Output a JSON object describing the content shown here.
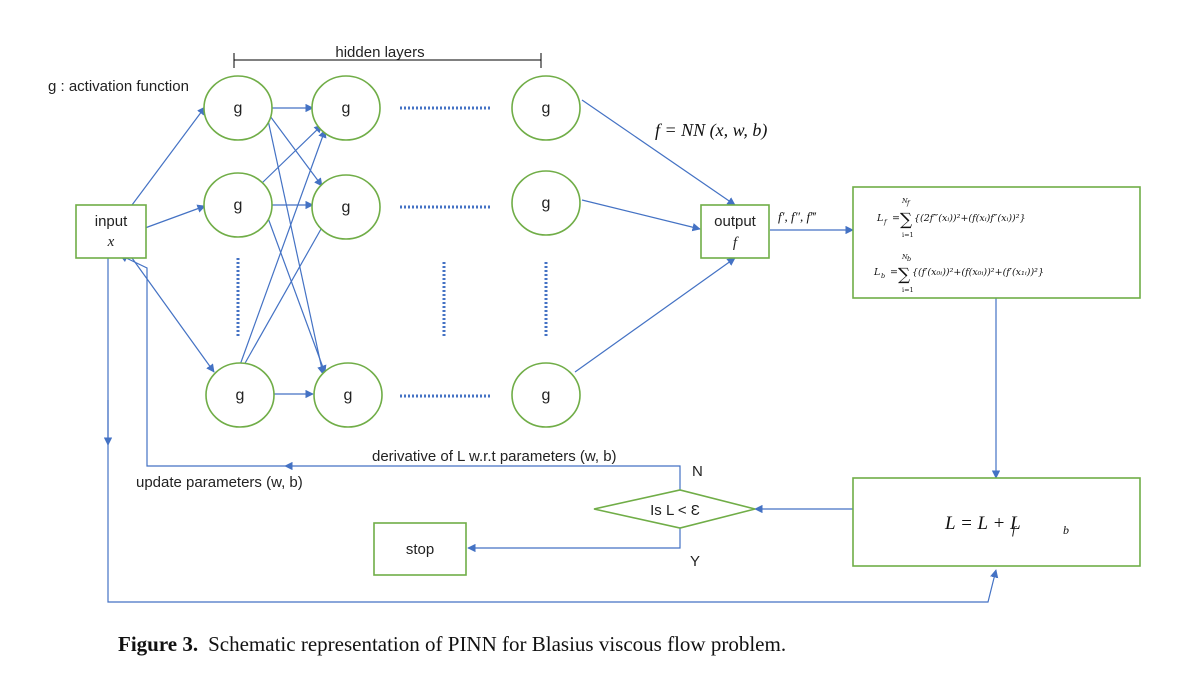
{
  "labels": {
    "activation_note": "g : activation function",
    "hidden_layers": "hidden layers",
    "node_g": "g",
    "input": "input",
    "input_var": "x",
    "output": "output",
    "output_var": "f",
    "nn_equation": "f = NN (x, w, b)",
    "derivatives": "f′, f″, f‴",
    "loss_f_lhs": "L",
    "loss_f_sub": "f",
    "loss_f_upper": "N",
    "loss_f_upper_sub": "f",
    "loss_f_lower": "i=1",
    "loss_f_body": "{(2f‴(xᵢ))²+(f(xᵢ)f″(xᵢ))²}",
    "loss_b_lhs": "L",
    "loss_b_sub": "b",
    "loss_b_upper": "N",
    "loss_b_upper_sub": "b",
    "loss_b_lower": "i=1",
    "loss_b_body": "{(f′(x₀ᵢ))²+(f(x₀ᵢ))²+(f′(x₁ᵢ))²}",
    "total_loss": "L = L  + L",
    "total_loss_sub_f": "f",
    "total_loss_sub_b": "b",
    "decision": "Is L < Ɛ",
    "no": "N",
    "yes": "Y",
    "stop": "stop",
    "derivative_note": "derivative of L w.r.t parameters (w, b)",
    "update_note": "update parameters (w, b)"
  },
  "caption": {
    "prefix": "Figure 3.",
    "text": "Schematic representation of PINN for Blasius viscous flow problem."
  },
  "colors": {
    "arrow": "#4472c4",
    "box_border": "#70ad47",
    "text": "#222222"
  }
}
